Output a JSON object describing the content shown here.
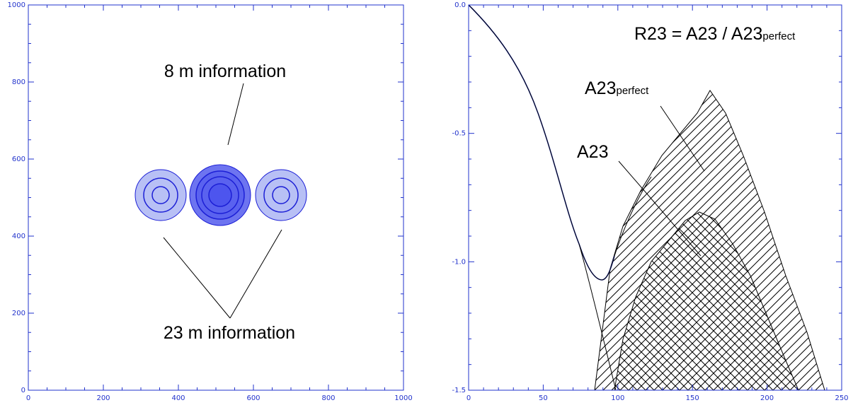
{
  "left_panel": {
    "x_ticks": [
      "0",
      "200",
      "400",
      "600",
      "800",
      "1000"
    ],
    "y_ticks": [
      "0",
      "200",
      "400",
      "600",
      "800",
      "1000"
    ],
    "label_top": "8 m information",
    "label_bottom": "23 m information",
    "colors": {
      "axis": "#2233cc",
      "disc_light": "#b8c0f5",
      "disc_dark": "#6d74f0",
      "ring": "#1c1fd6"
    }
  },
  "right_panel": {
    "x_ticks": [
      "0",
      "50",
      "100",
      "150",
      "200",
      "250"
    ],
    "y_ticks": [
      "0.0",
      "-0.5",
      "-1.0",
      "-1.5"
    ],
    "formula": {
      "lhs": "R23 = A23 / A23",
      "sub": "perfect"
    },
    "label_a23": "A23",
    "label_a23p": {
      "main": "A23",
      "sub": "perfect"
    },
    "colors": {
      "axis": "#2233cc",
      "curve": "#000000",
      "curve_blue": "#3344cc"
    }
  }
}
